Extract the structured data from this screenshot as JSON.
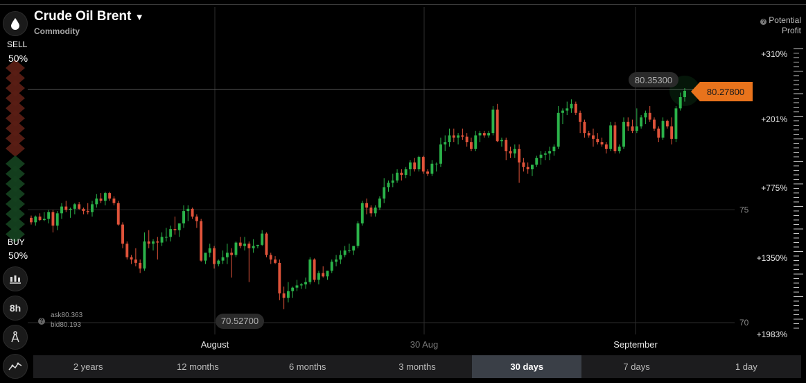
{
  "asset": {
    "title": "Crude Oil Brent",
    "subtitle": "Commodity"
  },
  "sentiment": {
    "sell_label": "SELL",
    "sell_pct": "50%",
    "buy_label": "BUY",
    "buy_pct": "50%"
  },
  "rail": {
    "timeframe": "8h"
  },
  "potential_profit": {
    "label_line1": "Potential",
    "label_line2": "Profit",
    "levels": [
      "+310%",
      "+201%",
      "+775%",
      "+1350%",
      "+1983%"
    ]
  },
  "quotes": {
    "ask": "ask80.363",
    "bid": "bid80.193",
    "current_price": "80.27800",
    "high_marker": "80.35300",
    "low_marker": "70.52700"
  },
  "price_axis": [
    "75",
    "70"
  ],
  "time_axis": [
    "August",
    "30 Aug",
    "September"
  ],
  "periods": [
    "2 years",
    "12 months",
    "6 months",
    "3 months",
    "30 days",
    "7 days",
    "1 day"
  ],
  "active_period": "30 days",
  "colors": {
    "up": "#2bb34a",
    "down": "#e0533a",
    "accent": "#e8731c",
    "background": "#000000"
  },
  "chart_data": {
    "type": "candlestick",
    "ylim": [
      70,
      81.5
    ],
    "candles": [
      [
        74.65,
        74.75,
        74.35,
        74.45
      ],
      [
        74.45,
        74.75,
        74.3,
        74.7
      ],
      [
        74.7,
        74.85,
        74.5,
        74.55
      ],
      [
        74.55,
        74.9,
        74.5,
        74.6
      ],
      [
        74.6,
        75.0,
        74.4,
        74.9
      ],
      [
        74.9,
        75.0,
        74.0,
        74.3
      ],
      [
        74.3,
        74.95,
        74.1,
        74.85
      ],
      [
        74.85,
        75.3,
        74.6,
        75.15
      ],
      [
        75.15,
        75.4,
        74.9,
        75.0
      ],
      [
        75.0,
        75.1,
        74.65,
        75.05
      ],
      [
        75.05,
        75.3,
        74.8,
        75.25
      ],
      [
        75.25,
        75.35,
        75.0,
        75.05
      ],
      [
        75.05,
        75.1,
        74.8,
        74.95
      ],
      [
        74.95,
        75.3,
        74.8,
        74.9
      ],
      [
        74.9,
        75.4,
        74.7,
        75.25
      ],
      [
        75.25,
        75.7,
        75.1,
        75.5
      ],
      [
        75.5,
        75.75,
        75.3,
        75.4
      ],
      [
        75.4,
        75.8,
        75.2,
        75.75
      ],
      [
        75.75,
        75.8,
        75.4,
        75.5
      ],
      [
        75.5,
        75.6,
        75.2,
        75.3
      ],
      [
        75.3,
        75.4,
        74.3,
        74.35
      ],
      [
        74.35,
        74.45,
        73.3,
        73.5
      ],
      [
        73.5,
        73.6,
        72.8,
        72.9
      ],
      [
        72.9,
        73.0,
        72.6,
        72.8
      ],
      [
        72.8,
        73.3,
        72.5,
        72.65
      ],
      [
        72.65,
        72.8,
        72.2,
        72.4
      ],
      [
        72.4,
        74.0,
        72.3,
        73.6
      ],
      [
        73.6,
        74.1,
        73.3,
        73.5
      ],
      [
        73.5,
        73.7,
        73.2,
        73.6
      ],
      [
        73.6,
        73.8,
        72.8,
        73.55
      ],
      [
        73.55,
        74.0,
        73.4,
        73.8
      ],
      [
        73.8,
        74.2,
        73.6,
        73.8
      ],
      [
        73.8,
        74.3,
        73.6,
        74.15
      ],
      [
        74.15,
        74.7,
        73.9,
        74.1
      ],
      [
        74.1,
        74.4,
        73.8,
        74.4
      ],
      [
        74.4,
        75.2,
        74.2,
        74.95
      ],
      [
        74.95,
        75.2,
        74.5,
        75.05
      ],
      [
        75.05,
        75.1,
        74.6,
        74.7
      ],
      [
        74.7,
        74.8,
        74.2,
        74.5
      ],
      [
        74.5,
        74.6,
        72.7,
        72.75
      ],
      [
        72.75,
        73.0,
        72.6,
        73.1
      ],
      [
        73.1,
        73.5,
        72.9,
        73.3
      ],
      [
        73.3,
        73.4,
        72.4,
        72.6
      ],
      [
        72.6,
        72.8,
        72.5,
        72.75
      ],
      [
        72.75,
        73.2,
        72.6,
        72.9
      ],
      [
        72.9,
        73.5,
        72.6,
        73.1
      ],
      [
        73.1,
        73.3,
        72.0,
        73.0
      ],
      [
        73.0,
        73.6,
        72.9,
        73.55
      ],
      [
        73.55,
        73.8,
        73.3,
        73.4
      ],
      [
        73.4,
        73.8,
        73.2,
        73.5
      ],
      [
        73.5,
        73.6,
        71.8,
        73.3
      ],
      [
        73.3,
        73.7,
        73.1,
        73.4
      ],
      [
        73.4,
        73.45,
        73.3,
        73.45
      ],
      [
        73.45,
        74.1,
        73.4,
        73.95
      ],
      [
        73.95,
        74.0,
        72.9,
        73.0
      ],
      [
        73.0,
        73.1,
        72.6,
        72.8
      ],
      [
        72.8,
        72.95,
        72.6,
        72.65
      ],
      [
        72.65,
        72.8,
        71.0,
        71.3
      ],
      [
        71.3,
        71.6,
        70.6,
        71.1
      ],
      [
        71.1,
        71.8,
        70.9,
        71.4
      ],
      [
        71.4,
        71.6,
        71.1,
        71.55
      ],
      [
        71.55,
        71.9,
        71.4,
        71.65
      ],
      [
        71.65,
        71.75,
        71.5,
        71.7
      ],
      [
        71.7,
        72.0,
        71.5,
        71.8
      ],
      [
        71.8,
        72.9,
        71.7,
        72.8
      ],
      [
        72.8,
        72.85,
        71.8,
        71.9
      ],
      [
        71.9,
        72.3,
        71.7,
        72.2
      ],
      [
        72.2,
        72.5,
        72.0,
        72.05
      ],
      [
        72.05,
        72.3,
        71.9,
        72.3
      ],
      [
        72.3,
        72.8,
        72.2,
        72.7
      ],
      [
        72.7,
        73.0,
        72.5,
        72.8
      ],
      [
        72.8,
        73.2,
        72.6,
        73.0
      ],
      [
        73.0,
        73.4,
        72.9,
        73.2
      ],
      [
        73.2,
        73.5,
        73.1,
        73.2
      ],
      [
        73.2,
        73.4,
        73.0,
        73.4
      ],
      [
        73.4,
        74.5,
        73.3,
        74.4
      ],
      [
        74.4,
        75.4,
        74.3,
        75.3
      ],
      [
        75.3,
        75.5,
        74.8,
        75.1
      ],
      [
        75.1,
        75.2,
        74.7,
        74.85
      ],
      [
        74.85,
        75.2,
        74.7,
        75.1
      ],
      [
        75.1,
        75.6,
        75.0,
        75.5
      ],
      [
        75.5,
        76.4,
        75.3,
        76.0
      ],
      [
        76.0,
        76.3,
        75.8,
        76.2
      ],
      [
        76.2,
        76.6,
        76.0,
        76.3
      ],
      [
        76.3,
        76.8,
        76.2,
        76.65
      ],
      [
        76.65,
        76.8,
        76.3,
        76.55
      ],
      [
        76.55,
        76.9,
        76.4,
        76.8
      ],
      [
        76.8,
        77.2,
        76.5,
        77.1
      ],
      [
        77.1,
        77.3,
        76.7,
        76.8
      ],
      [
        76.8,
        77.4,
        76.7,
        77.35
      ],
      [
        77.35,
        77.4,
        76.6,
        76.7
      ],
      [
        76.7,
        76.8,
        76.5,
        76.6
      ],
      [
        76.6,
        77.2,
        76.5,
        77.05
      ],
      [
        77.05,
        77.1,
        76.7,
        77.05
      ],
      [
        77.05,
        78.2,
        76.9,
        77.9
      ],
      [
        77.9,
        78.3,
        77.6,
        78.0
      ],
      [
        78.0,
        78.6,
        77.8,
        78.3
      ],
      [
        78.3,
        78.6,
        78.0,
        78.2
      ],
      [
        78.2,
        78.4,
        77.9,
        78.3
      ],
      [
        78.3,
        78.6,
        78.1,
        78.25
      ],
      [
        78.25,
        78.4,
        77.8,
        78.0
      ],
      [
        78.0,
        78.2,
        77.6,
        77.7
      ],
      [
        77.7,
        78.5,
        77.6,
        78.3
      ],
      [
        78.3,
        78.5,
        78.0,
        78.4
      ],
      [
        78.4,
        78.5,
        78.2,
        78.3
      ],
      [
        78.3,
        78.5,
        78.2,
        78.4
      ],
      [
        78.4,
        79.6,
        78.3,
        79.45
      ],
      [
        79.45,
        79.7,
        78.0,
        78.05
      ],
      [
        78.05,
        78.2,
        77.8,
        78.1
      ],
      [
        78.1,
        78.2,
        77.2,
        77.6
      ],
      [
        77.6,
        77.8,
        77.3,
        77.5
      ],
      [
        77.5,
        77.9,
        77.3,
        77.7
      ],
      [
        77.7,
        77.9,
        76.2,
        77.1
      ],
      [
        77.1,
        77.3,
        76.7,
        76.9
      ],
      [
        76.9,
        77.1,
        76.6,
        76.8
      ],
      [
        76.8,
        77.0,
        76.5,
        77.0
      ],
      [
        77.0,
        77.4,
        76.9,
        77.3
      ],
      [
        77.3,
        77.6,
        77.0,
        77.45
      ],
      [
        77.45,
        77.6,
        77.2,
        77.5
      ],
      [
        77.5,
        77.8,
        77.2,
        77.6
      ],
      [
        77.6,
        77.9,
        77.4,
        77.8
      ],
      [
        77.8,
        79.6,
        77.7,
        79.3
      ],
      [
        79.3,
        79.5,
        78.8,
        79.4
      ],
      [
        79.4,
        79.8,
        79.2,
        79.5
      ],
      [
        79.5,
        79.9,
        79.3,
        79.7
      ],
      [
        79.7,
        79.8,
        79.2,
        79.3
      ],
      [
        79.3,
        79.4,
        78.4,
        78.9
      ],
      [
        78.9,
        79.0,
        78.2,
        78.4
      ],
      [
        78.4,
        78.5,
        78.2,
        78.3
      ],
      [
        78.3,
        78.6,
        77.8,
        78.15
      ],
      [
        78.15,
        78.4,
        77.9,
        78.0
      ],
      [
        78.0,
        78.2,
        77.8,
        77.9
      ],
      [
        77.9,
        78.0,
        77.5,
        77.7
      ],
      [
        77.7,
        78.9,
        77.6,
        78.75
      ],
      [
        78.75,
        78.9,
        77.5,
        77.6
      ],
      [
        77.6,
        77.9,
        77.5,
        77.8
      ],
      [
        77.8,
        79.1,
        77.7,
        78.9
      ],
      [
        78.9,
        79.1,
        78.5,
        78.7
      ],
      [
        78.7,
        79.0,
        78.4,
        78.5
      ],
      [
        78.5,
        79.5,
        78.4,
        78.7
      ],
      [
        78.7,
        79.2,
        78.6,
        79.1
      ],
      [
        79.1,
        79.4,
        78.8,
        79.3
      ],
      [
        79.3,
        79.6,
        78.9,
        79.0
      ],
      [
        79.0,
        79.1,
        78.5,
        78.6
      ],
      [
        78.6,
        78.7,
        78.0,
        78.2
      ],
      [
        78.2,
        79.1,
        78.1,
        78.95
      ],
      [
        78.95,
        79.0,
        78.6,
        78.7
      ],
      [
        78.7,
        79.1,
        77.9,
        78.15
      ],
      [
        78.15,
        79.6,
        78.0,
        79.5
      ],
      [
        79.5,
        80.2,
        79.4,
        80.0
      ],
      [
        80.0,
        80.4,
        79.8,
        80.278
      ]
    ]
  }
}
